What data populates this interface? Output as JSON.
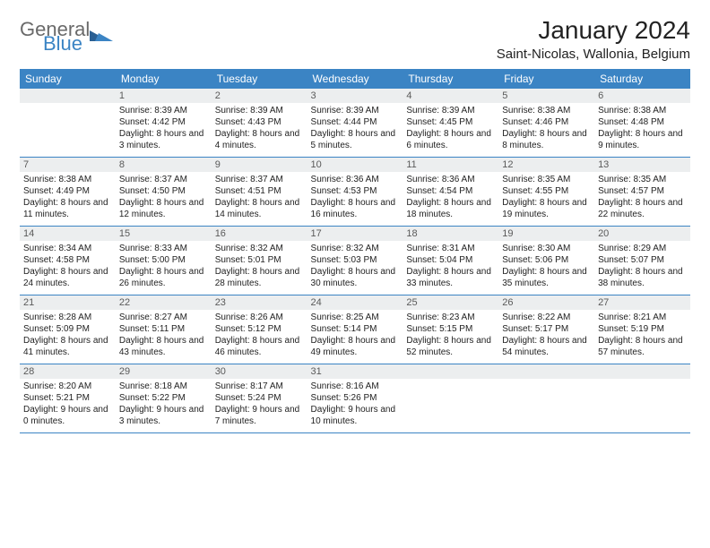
{
  "brand": {
    "general": "General",
    "blue": "Blue"
  },
  "title": "January 2024",
  "location": "Saint-Nicolas, Wallonia, Belgium",
  "colors": {
    "header_bg": "#3b84c4",
    "header_text": "#ffffff",
    "daynum_bg": "#eceeef",
    "daynum_text": "#5a5a5a",
    "body_text": "#222222",
    "rule": "#3b84c4",
    "page_bg": "#ffffff",
    "logo_gray": "#6a6a6a",
    "logo_blue": "#3b84c4"
  },
  "typography": {
    "title_size_pt": 21,
    "location_size_pt": 11,
    "header_size_pt": 9,
    "body_size_pt": 7.5
  },
  "weekdays": [
    "Sunday",
    "Monday",
    "Tuesday",
    "Wednesday",
    "Thursday",
    "Friday",
    "Saturday"
  ],
  "start_offset": 1,
  "days": [
    {
      "n": "1",
      "sunrise": "8:39 AM",
      "sunset": "4:42 PM",
      "daylight": "8 hours and 3 minutes."
    },
    {
      "n": "2",
      "sunrise": "8:39 AM",
      "sunset": "4:43 PM",
      "daylight": "8 hours and 4 minutes."
    },
    {
      "n": "3",
      "sunrise": "8:39 AM",
      "sunset": "4:44 PM",
      "daylight": "8 hours and 5 minutes."
    },
    {
      "n": "4",
      "sunrise": "8:39 AM",
      "sunset": "4:45 PM",
      "daylight": "8 hours and 6 minutes."
    },
    {
      "n": "5",
      "sunrise": "8:38 AM",
      "sunset": "4:46 PM",
      "daylight": "8 hours and 8 minutes."
    },
    {
      "n": "6",
      "sunrise": "8:38 AM",
      "sunset": "4:48 PM",
      "daylight": "8 hours and 9 minutes."
    },
    {
      "n": "7",
      "sunrise": "8:38 AM",
      "sunset": "4:49 PM",
      "daylight": "8 hours and 11 minutes."
    },
    {
      "n": "8",
      "sunrise": "8:37 AM",
      "sunset": "4:50 PM",
      "daylight": "8 hours and 12 minutes."
    },
    {
      "n": "9",
      "sunrise": "8:37 AM",
      "sunset": "4:51 PM",
      "daylight": "8 hours and 14 minutes."
    },
    {
      "n": "10",
      "sunrise": "8:36 AM",
      "sunset": "4:53 PM",
      "daylight": "8 hours and 16 minutes."
    },
    {
      "n": "11",
      "sunrise": "8:36 AM",
      "sunset": "4:54 PM",
      "daylight": "8 hours and 18 minutes."
    },
    {
      "n": "12",
      "sunrise": "8:35 AM",
      "sunset": "4:55 PM",
      "daylight": "8 hours and 19 minutes."
    },
    {
      "n": "13",
      "sunrise": "8:35 AM",
      "sunset": "4:57 PM",
      "daylight": "8 hours and 22 minutes."
    },
    {
      "n": "14",
      "sunrise": "8:34 AM",
      "sunset": "4:58 PM",
      "daylight": "8 hours and 24 minutes."
    },
    {
      "n": "15",
      "sunrise": "8:33 AM",
      "sunset": "5:00 PM",
      "daylight": "8 hours and 26 minutes."
    },
    {
      "n": "16",
      "sunrise": "8:32 AM",
      "sunset": "5:01 PM",
      "daylight": "8 hours and 28 minutes."
    },
    {
      "n": "17",
      "sunrise": "8:32 AM",
      "sunset": "5:03 PM",
      "daylight": "8 hours and 30 minutes."
    },
    {
      "n": "18",
      "sunrise": "8:31 AM",
      "sunset": "5:04 PM",
      "daylight": "8 hours and 33 minutes."
    },
    {
      "n": "19",
      "sunrise": "8:30 AM",
      "sunset": "5:06 PM",
      "daylight": "8 hours and 35 minutes."
    },
    {
      "n": "20",
      "sunrise": "8:29 AM",
      "sunset": "5:07 PM",
      "daylight": "8 hours and 38 minutes."
    },
    {
      "n": "21",
      "sunrise": "8:28 AM",
      "sunset": "5:09 PM",
      "daylight": "8 hours and 41 minutes."
    },
    {
      "n": "22",
      "sunrise": "8:27 AM",
      "sunset": "5:11 PM",
      "daylight": "8 hours and 43 minutes."
    },
    {
      "n": "23",
      "sunrise": "8:26 AM",
      "sunset": "5:12 PM",
      "daylight": "8 hours and 46 minutes."
    },
    {
      "n": "24",
      "sunrise": "8:25 AM",
      "sunset": "5:14 PM",
      "daylight": "8 hours and 49 minutes."
    },
    {
      "n": "25",
      "sunrise": "8:23 AM",
      "sunset": "5:15 PM",
      "daylight": "8 hours and 52 minutes."
    },
    {
      "n": "26",
      "sunrise": "8:22 AM",
      "sunset": "5:17 PM",
      "daylight": "8 hours and 54 minutes."
    },
    {
      "n": "27",
      "sunrise": "8:21 AM",
      "sunset": "5:19 PM",
      "daylight": "8 hours and 57 minutes."
    },
    {
      "n": "28",
      "sunrise": "8:20 AM",
      "sunset": "5:21 PM",
      "daylight": "9 hours and 0 minutes."
    },
    {
      "n": "29",
      "sunrise": "8:18 AM",
      "sunset": "5:22 PM",
      "daylight": "9 hours and 3 minutes."
    },
    {
      "n": "30",
      "sunrise": "8:17 AM",
      "sunset": "5:24 PM",
      "daylight": "9 hours and 7 minutes."
    },
    {
      "n": "31",
      "sunrise": "8:16 AM",
      "sunset": "5:26 PM",
      "daylight": "9 hours and 10 minutes."
    }
  ],
  "labels": {
    "sunrise": "Sunrise: ",
    "sunset": "Sunset: ",
    "daylight": "Daylight: "
  }
}
